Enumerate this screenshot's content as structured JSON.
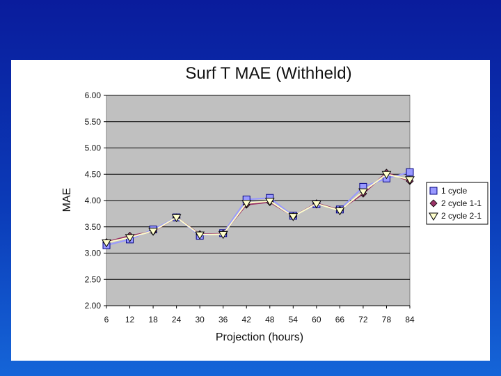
{
  "chart_data": {
    "type": "line",
    "title": "Surf T MAE (Withheld)",
    "xlabel": "Projection (hours)",
    "ylabel": "MAE",
    "x": [
      6,
      12,
      18,
      24,
      30,
      36,
      42,
      48,
      54,
      60,
      66,
      72,
      78,
      84
    ],
    "ylim": [
      2.0,
      6.0
    ],
    "yticks": [
      "2.00",
      "2.50",
      "3.00",
      "3.50",
      "4.00",
      "4.50",
      "5.00",
      "5.50",
      "6.00"
    ],
    "grid": true,
    "legend": "right",
    "series": [
      {
        "name": "1 cycle",
        "color": "#9999ff",
        "marker": "square",
        "values": [
          3.15,
          3.26,
          3.45,
          3.68,
          3.33,
          3.38,
          4.02,
          4.05,
          3.71,
          3.93,
          3.83,
          4.26,
          4.42,
          4.54
        ]
      },
      {
        "name": "2 cycle 1-1",
        "color": "#993366",
        "marker": "diamond",
        "values": [
          3.21,
          3.33,
          3.41,
          3.68,
          3.36,
          3.37,
          3.92,
          3.97,
          3.7,
          3.95,
          3.82,
          4.13,
          4.53,
          4.37
        ]
      },
      {
        "name": "2 cycle 2-1",
        "color": "#ffffcc",
        "marker": "triangle",
        "values": [
          3.2,
          3.3,
          3.42,
          3.68,
          3.35,
          3.36,
          3.95,
          3.99,
          3.7,
          3.94,
          3.81,
          4.17,
          4.5,
          4.4
        ]
      }
    ]
  }
}
